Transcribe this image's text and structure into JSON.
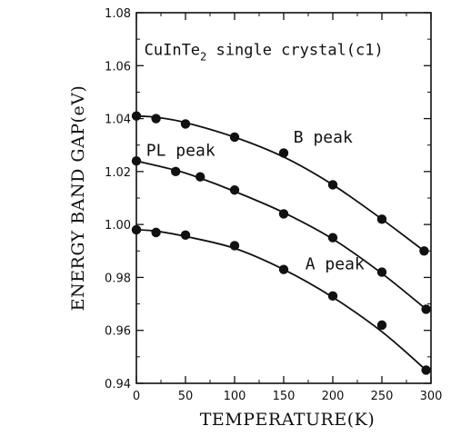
{
  "chart_data": {
    "type": "line",
    "title": "CuInTe2 single crystal(c1)",
    "title_parts": {
      "main": "CuInTe",
      "sub": "2",
      "rest": " single crystal(c1)"
    },
    "xlabel": "TEMPERATURE(K)",
    "ylabel": "ENERGY BAND GAP(eV)",
    "xlim": [
      0,
      300
    ],
    "ylim": [
      0.94,
      1.08
    ],
    "x_ticks": [
      0,
      50,
      100,
      150,
      200,
      250,
      300
    ],
    "y_ticks": [
      "0.94",
      "0.96",
      "0.98",
      "1.00",
      "1.02",
      "1.04",
      "1.06",
      "1.08"
    ],
    "grid": false,
    "legend": "none",
    "series": [
      {
        "name": "B peak",
        "x": [
          0,
          20,
          50,
          100,
          150,
          200,
          250,
          293
        ],
        "y": [
          1.041,
          1.04,
          1.038,
          1.033,
          1.027,
          1.015,
          1.002,
          0.99
        ],
        "curve_y": [
          1.041,
          1.0405,
          1.0385,
          1.033,
          1.0255,
          1.015,
          1.002,
          0.99
        ]
      },
      {
        "name": "PL peak",
        "x": [
          0,
          40,
          65,
          100,
          150,
          200,
          250,
          295
        ],
        "y": [
          1.024,
          1.02,
          1.018,
          1.013,
          1.004,
          0.995,
          0.982,
          0.968
        ],
        "curve_y": [
          1.024,
          1.0205,
          1.0175,
          1.0125,
          1.0045,
          0.9945,
          0.9815,
          0.968
        ]
      },
      {
        "name": "A peak",
        "x": [
          0,
          20,
          50,
          100,
          150,
          200,
          250,
          295
        ],
        "y": [
          0.998,
          0.997,
          0.996,
          0.992,
          0.983,
          0.973,
          0.962,
          0.945
        ],
        "curve_y": [
          0.998,
          0.9975,
          0.9955,
          0.991,
          0.983,
          0.9725,
          0.9595,
          0.945
        ]
      }
    ],
    "annotations": [
      {
        "text": "B peak",
        "x": 160,
        "y": 1.031
      },
      {
        "text": "PL peak",
        "x": 10,
        "y": 1.026
      },
      {
        "text": "A peak",
        "x": 172,
        "y": 0.983
      }
    ]
  }
}
